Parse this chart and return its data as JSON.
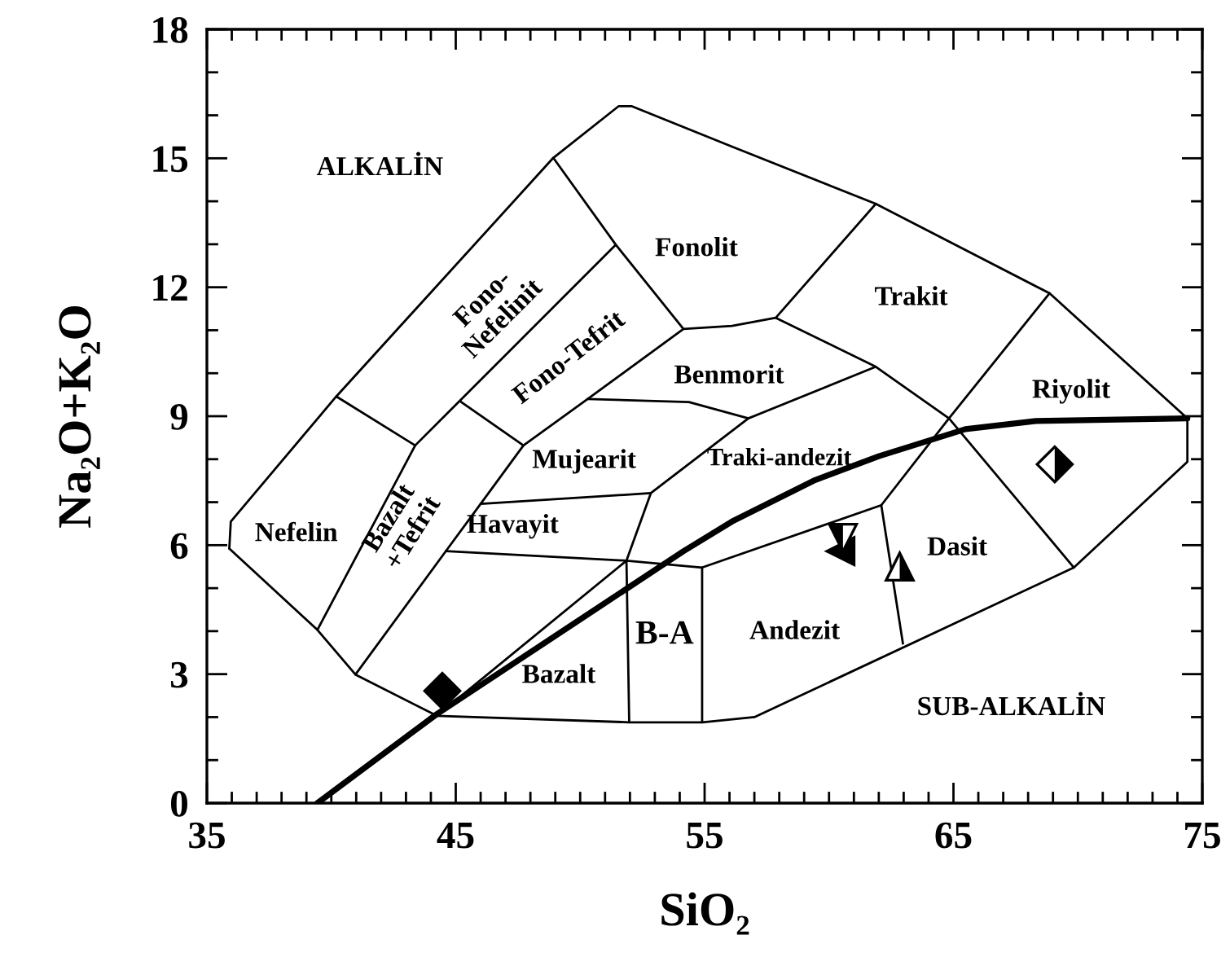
{
  "chart_data": {
    "type": "line",
    "xlabel": "SiO₂",
    "ylabel": "Na₂O+K₂O",
    "xlim": [
      35,
      75
    ],
    "ylim": [
      0,
      18
    ],
    "xticks": [
      35,
      45,
      55,
      65,
      75
    ],
    "yticks": [
      0,
      3,
      6,
      9,
      12,
      15,
      18
    ],
    "series": [
      {
        "color": "#000000",
        "x": [
          39.44,
          44.24,
          54.15,
          56.1,
          59.38,
          62.0,
          65.48,
          68.31,
          74.4
        ],
        "values": [
          0,
          2.07,
          5.86,
          6.55,
          7.5,
          8.07,
          8.7,
          8.89,
          8.95
        ]
      },
      {
        "color": "#000000",
        "x": [
          35.9,
          35.96,
          40.2,
          48.92,
          51.54,
          52.08,
          56.1,
          61.88,
          68.86,
          74.4
        ],
        "values": [
          5.92,
          6.55,
          9.46,
          15.01,
          16.21,
          16.21,
          15.27,
          13.94,
          11.86,
          8.95
        ]
      },
      {
        "color": "#000000",
        "x": [
          35.9,
          39.44,
          40.97,
          44.24,
          51.97,
          54.9,
          57.0,
          69.84,
          74.4,
          74.4
        ],
        "values": [
          5.92,
          4.03,
          2.99,
          2.03,
          1.88,
          1.88,
          2.0,
          5.48,
          7.94,
          8.95
        ]
      },
      {
        "color": "#000000",
        "x": [
          40.2,
          43.37,
          51.43
        ],
        "values": [
          9.46,
          8.32,
          12.99
        ]
      },
      {
        "color": "#000000",
        "x": [
          48.92,
          51.43,
          54.15,
          56.1,
          57.86,
          61.88
        ],
        "values": [
          15.01,
          12.99,
          11.03,
          11.1,
          11.29,
          13.94
        ]
      },
      {
        "color": "#000000",
        "x": [
          39.44,
          43.37
        ],
        "values": [
          4.03,
          8.32
        ]
      },
      {
        "color": "#000000",
        "x": [
          45.22,
          47.72,
          50.3,
          54.15
        ],
        "values": [
          9.33,
          8.32,
          9.4,
          11.03
        ]
      },
      {
        "color": "#000000",
        "x": [
          40.97,
          44.6,
          46.0,
          47.72
        ],
        "values": [
          2.99,
          5.86,
          6.96,
          8.32
        ]
      },
      {
        "color": "#000000",
        "x": [
          46.0,
          52.84
        ],
        "values": [
          6.96,
          7.21
        ]
      },
      {
        "color": "#000000",
        "x": [
          44.6,
          51.86,
          54.9,
          62.1,
          64.82,
          68.86
        ],
        "values": [
          5.86,
          5.64,
          5.48,
          6.93,
          8.95,
          11.86
        ]
      },
      {
        "color": "#000000",
        "x": [
          44.24,
          51.86,
          52.84,
          56.76,
          61.88,
          64.82,
          69.84
        ],
        "values": [
          2.03,
          5.64,
          7.21,
          8.95,
          10.15,
          8.95,
          5.48
        ]
      },
      {
        "color": "#000000",
        "x": [
          50.3,
          54.37,
          56.76
        ],
        "values": [
          9.4,
          9.33,
          8.95
        ]
      },
      {
        "color": "#000000",
        "x": [
          57.86,
          61.88
        ],
        "values": [
          11.29,
          10.15
        ]
      },
      {
        "color": "#000000",
        "x": [
          62.1,
          62.97
        ],
        "values": [
          6.93,
          3.71
        ]
      },
      {
        "color": "#000000",
        "x": [
          51.86,
          51.97
        ],
        "values": [
          5.64,
          1.88
        ]
      },
      {
        "color": "#000000",
        "x": [
          54.9,
          54.9
        ],
        "values": [
          5.48,
          1.88
        ]
      },
      {
        "type": "scatter",
        "color": "#000000",
        "marker": "diamond",
        "x": [
          44.46
        ],
        "values": [
          2.61
        ]
      },
      {
        "type": "scatter",
        "color": "#000000",
        "marker": "triangle",
        "x": [
          60.46
        ],
        "values": [
          5.86
        ]
      },
      {
        "type": "scatter",
        "color": "#000000",
        "marker": "triangle",
        "x": [
          60.56
        ],
        "values": [
          6.17
        ]
      },
      {
        "type": "scatter",
        "color": "#000000",
        "marker": "triangle",
        "x": [
          62.84
        ],
        "values": [
          5.5
        ]
      },
      {
        "type": "scatter",
        "color": "#000000",
        "marker": "diamond",
        "x": [
          69.07
        ],
        "values": [
          7.88
        ]
      }
    ],
    "annotations": [
      "ALKALİN",
      "Fonolit",
      "Trakit",
      "Riyolit",
      "Benmorit",
      "Mujearit",
      "Traki-andezit",
      "Havayit",
      "Nefelin",
      "Bazalt\n+Tefrit",
      "Fono-\nNefelinit",
      "Fono-Tefrit",
      "B-A",
      "Bazalt",
      "Andezit",
      "Dasit",
      "SUB-ALKALİN"
    ]
  }
}
